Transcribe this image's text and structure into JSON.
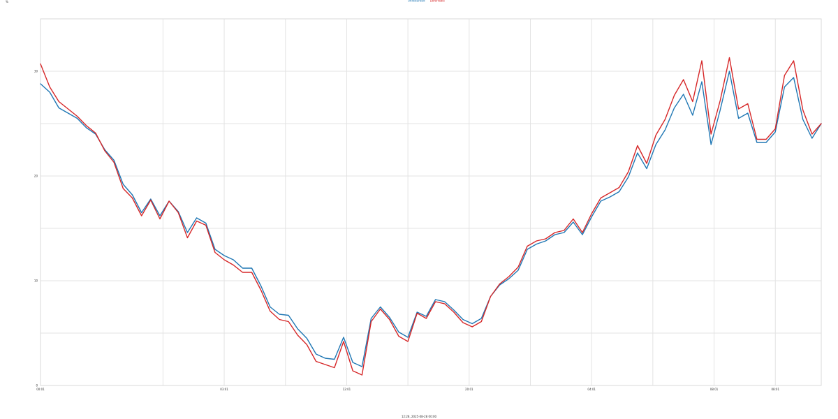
{
  "chart_data": {
    "type": "line",
    "title": "",
    "legend": {
      "placement": "top-center"
    },
    "grid": true,
    "ylabel": "%",
    "xlabel": "12:28, 2025-08-28 00:00",
    "ylim": [
      0,
      35
    ],
    "xlim": [
      0,
      510
    ],
    "y_ticks": [
      {
        "value": 0,
        "label": "0"
      },
      {
        "value": 10,
        "label": "10"
      },
      {
        "value": 20,
        "label": "20"
      },
      {
        "value": 30,
        "label": "30"
      }
    ],
    "x_ticks": [
      {
        "value": 0,
        "label": "00:01"
      },
      {
        "value": 80,
        "label": ""
      },
      {
        "value": 120,
        "label": "03:01"
      },
      {
        "value": 160,
        "label": ""
      },
      {
        "value": 200,
        "label": "12:01"
      },
      {
        "value": 240,
        "label": ""
      },
      {
        "value": 280,
        "label": "20:01"
      },
      {
        "value": 320,
        "label": ""
      },
      {
        "value": 360,
        "label": "04:01"
      },
      {
        "value": 400,
        "label": ""
      },
      {
        "value": 440,
        "label": "08:01"
      },
      {
        "value": 480,
        "label": "08:01"
      }
    ],
    "colors": {
      "background": "#ffffff",
      "grid": "#e3e3e3"
    },
    "series": [
      {
        "name": "Undisturbed",
        "color": "#1f77b4",
        "x": [
          0,
          6,
          12,
          18,
          24,
          30,
          36,
          42,
          48,
          54,
          60,
          66,
          72,
          78,
          84,
          90,
          96,
          102,
          108,
          114,
          120,
          126,
          132,
          138,
          144,
          150,
          156,
          162,
          168,
          174,
          180,
          186,
          192,
          198,
          204,
          210,
          216,
          222,
          228,
          234,
          240,
          246,
          252,
          258,
          264,
          270,
          276,
          282,
          288,
          294,
          300,
          306,
          312,
          318,
          324,
          330,
          336,
          342,
          348,
          354,
          360,
          366,
          372,
          378,
          384,
          390,
          396,
          402,
          408,
          414,
          420,
          426,
          432,
          438,
          444,
          450,
          456,
          462,
          468,
          474,
          480,
          486,
          492,
          498,
          504,
          510
        ],
        "values": [
          28.8,
          28.0,
          26.5,
          26.0,
          25.5,
          24.6,
          24.0,
          22.5,
          21.5,
          19.2,
          18.2,
          16.5,
          17.8,
          16.2,
          17.6,
          16.6,
          14.6,
          16.0,
          15.5,
          13.0,
          12.4,
          12.0,
          11.2,
          11.2,
          9.5,
          7.5,
          6.8,
          6.7,
          5.4,
          4.5,
          3.0,
          2.6,
          2.5,
          4.6,
          2.2,
          1.8,
          6.4,
          7.5,
          6.5,
          5.1,
          4.6,
          7.0,
          6.6,
          8.2,
          8.0,
          7.2,
          6.3,
          5.9,
          6.4,
          8.5,
          9.6,
          10.2,
          11.0,
          13.0,
          13.5,
          13.8,
          14.4,
          14.6,
          15.6,
          14.4,
          16.1,
          17.6,
          18.0,
          18.5,
          19.9,
          22.2,
          20.7,
          23.0,
          24.4,
          26.5,
          27.8,
          25.8,
          29.0,
          23.0,
          26.3,
          30.0,
          25.5,
          26.0,
          23.2,
          23.2,
          24.2,
          28.5,
          29.4,
          25.4,
          23.6,
          25.0
        ]
      },
      {
        "name": "Deferrable",
        "color": "#d62728",
        "x": [
          0,
          6,
          12,
          18,
          24,
          30,
          36,
          42,
          48,
          54,
          60,
          66,
          72,
          78,
          84,
          90,
          96,
          102,
          108,
          114,
          120,
          126,
          132,
          138,
          144,
          150,
          156,
          162,
          168,
          174,
          180,
          186,
          192,
          198,
          204,
          210,
          216,
          222,
          228,
          234,
          240,
          246,
          252,
          258,
          264,
          270,
          276,
          282,
          288,
          294,
          300,
          306,
          312,
          318,
          324,
          330,
          336,
          342,
          348,
          354,
          360,
          366,
          372,
          378,
          384,
          390,
          396,
          402,
          408,
          414,
          420,
          426,
          432,
          438,
          444,
          450,
          456,
          462,
          468,
          474,
          480,
          486,
          492,
          498,
          504,
          510
        ],
        "values": [
          30.7,
          28.5,
          27.1,
          26.4,
          25.7,
          24.8,
          24.1,
          22.4,
          21.3,
          18.8,
          17.9,
          16.2,
          17.7,
          15.9,
          17.6,
          16.5,
          14.1,
          15.7,
          15.3,
          12.7,
          12.0,
          11.5,
          10.8,
          10.8,
          9.1,
          7.1,
          6.3,
          6.1,
          4.8,
          3.9,
          2.3,
          2.0,
          1.7,
          4.2,
          1.4,
          1.0,
          6.1,
          7.3,
          6.3,
          4.7,
          4.2,
          6.9,
          6.4,
          8.0,
          7.8,
          7.0,
          6.0,
          5.6,
          6.1,
          8.5,
          9.7,
          10.4,
          11.3,
          13.3,
          13.8,
          14.0,
          14.6,
          14.8,
          15.9,
          14.6,
          16.4,
          17.9,
          18.4,
          18.9,
          20.4,
          22.9,
          21.2,
          23.9,
          25.4,
          27.7,
          29.2,
          27.1,
          31.0,
          24.0,
          27.2,
          31.3,
          26.4,
          26.9,
          23.5,
          23.5,
          24.5,
          29.6,
          31.0,
          26.3,
          24.0,
          25.0
        ]
      }
    ]
  }
}
